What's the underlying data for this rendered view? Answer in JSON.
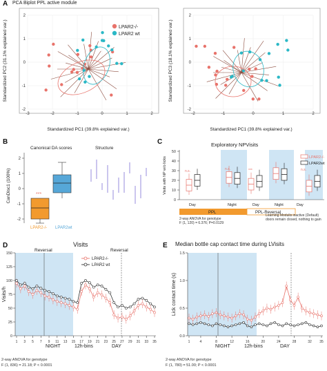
{
  "panels": {
    "A": "A",
    "B": "B",
    "C": "C",
    "D": "D",
    "E": "E"
  },
  "colors": {
    "ko": "#e8736b",
    "wt": "#2bb8c6",
    "shade": "#cfe5f4",
    "arrow": "#8b4a3c",
    "orange": "#f29a2e",
    "blue": "#56a7d8"
  },
  "panelA": {
    "title": "PCA Biplot PPL active module",
    "left": {
      "xlabel": "Standardized PC1 (39.8% explained var.)",
      "ylabel": "Standardized PC2 (31.1% explained var.)",
      "xticks": [
        "-3",
        "-2",
        "-1",
        "0",
        "1",
        "2"
      ],
      "yticks": [
        "2",
        "1",
        "0",
        "-1",
        "-2"
      ],
      "legend": [
        "LPAR2-/-",
        "LPAR2 wt"
      ]
    },
    "right": {
      "xlabel": "Standardized PC1 (39.8% explained var.)",
      "ylabel": "Standardized PC3 (18.1% explained var.)",
      "xticks": [
        "-2",
        "-1",
        "0",
        "1",
        "2"
      ],
      "yticks": [
        "2",
        "1",
        "0",
        "-1",
        "-2"
      ]
    }
  },
  "panelB": {
    "title_left": "Canonical DA scores",
    "title_right": "Structure",
    "ylabel": "CanDisc1 (100%)",
    "yticks": [
      "2",
      "1",
      "0",
      "-1",
      "-2"
    ],
    "groups": [
      "LPAR2-/-",
      "LPAR2wt"
    ],
    "sig": "***"
  },
  "panelC": {
    "title": "Exploratory NPVisits",
    "ylabel": "Visits with NP w/o licks",
    "yticks": [
      "50",
      "40",
      "30",
      "20",
      "10",
      "0"
    ],
    "legend": [
      "LPAR2-/-",
      "LPAR2wt"
    ],
    "phases": [
      "Day",
      "Night",
      "Day",
      "Night",
      "Day"
    ],
    "conditions": [
      "PPL",
      "PPL-Reversal"
    ],
    "sig_labels": [
      "n.s.",
      "n.s.",
      "***",
      "n.s."
    ],
    "note_left": [
      "2-way ANOVA for genotype",
      "F (1, 120) = 6.376; P=0.0129"
    ],
    "note_right": [
      "Learning Modulis inactive (Default)",
      "doors remain closed, nothing to gain"
    ],
    "chart_data": {
      "type": "box",
      "groups": [
        "PPL Day",
        "PPL Night",
        "PPL-Reversal Day",
        "PPL-Reversal Night",
        "Default Day"
      ],
      "series": [
        {
          "name": "LPAR2-/-",
          "median": [
            15,
            23,
            16,
            27,
            14
          ]
        },
        {
          "name": "LPAR2wt",
          "median": [
            20,
            22,
            19,
            26,
            19
          ]
        }
      ],
      "ylim": [
        0,
        50
      ]
    }
  },
  "panelD": {
    "title": "Visits",
    "ylabel": "Visits/h",
    "xlabel_parts": [
      "NIGHT",
      "12h-bins",
      "DAY"
    ],
    "reversal": "Reversal",
    "legend": [
      "LPAR2-/-",
      "LPAR2 wt"
    ],
    "yticks": [
      "150",
      "125",
      "100",
      "75",
      "50",
      "25",
      "0"
    ],
    "xticks": [
      "1",
      "3",
      "5",
      "7",
      "9",
      "11",
      "13",
      "15",
      "17",
      "19",
      "21",
      "23",
      "25",
      "27",
      "29",
      "31",
      "33",
      "35"
    ],
    "note": [
      "2-way ANOVA for genotype",
      "F (1, 836) = 21.18; P < 0.0001"
    ],
    "chart_data": {
      "type": "line",
      "x": [
        1,
        2,
        3,
        4,
        5,
        6,
        7,
        8,
        9,
        10,
        11,
        12,
        13,
        14,
        15,
        16,
        17,
        18,
        19,
        20,
        21,
        22,
        23,
        24,
        25,
        26,
        27,
        28,
        29,
        30,
        31,
        32,
        33,
        34,
        35
      ],
      "series": [
        {
          "name": "LPAR2-/-",
          "values": [
            95,
            85,
            90,
            80,
            75,
            82,
            78,
            72,
            70,
            65,
            62,
            60,
            58,
            55,
            52,
            48,
            80,
            92,
            85,
            70,
            78,
            74,
            68,
            60,
            38,
            32,
            34,
            30,
            36,
            45,
            55,
            58,
            52,
            48,
            42
          ]
        },
        {
          "name": "LPAR2 wt",
          "values": [
            100,
            92,
            95,
            88,
            85,
            90,
            86,
            82,
            80,
            76,
            72,
            70,
            68,
            66,
            62,
            60,
            95,
            100,
            96,
            88,
            92,
            90,
            84,
            78,
            60,
            52,
            55,
            50,
            52,
            58,
            66,
            68,
            64,
            58,
            52
          ]
        }
      ],
      "ylim": [
        0,
        150
      ]
    }
  },
  "panelE": {
    "title": "Median bottle cap contact time during LVisits",
    "ylabel": "Lick contact time (s)",
    "xlabel_parts": [
      "NIGHT",
      "12h-bins",
      "DAY"
    ],
    "yticks": [
      "1.5",
      "1.0",
      "0.5",
      "0.0"
    ],
    "xticks": [
      "1",
      "4",
      "8",
      "12",
      "16",
      "20",
      "24",
      "28",
      "32",
      "35"
    ],
    "note": [
      "2-way ANOVA for genotype",
      "F (1, 780) = 51.00; P < 0.0001"
    ],
    "chart_data": {
      "type": "line",
      "x": [
        1,
        2,
        3,
        4,
        5,
        6,
        7,
        8,
        9,
        10,
        11,
        12,
        13,
        14,
        15,
        16,
        17,
        18,
        19,
        20,
        21,
        22,
        23,
        24,
        25,
        26,
        27,
        28,
        29,
        30,
        31,
        32,
        33,
        34,
        35
      ],
      "series": [
        {
          "name": "LPAR2-/-",
          "values": [
            0.32,
            0.3,
            0.34,
            0.36,
            0.38,
            0.35,
            0.4,
            0.42,
            0.38,
            0.36,
            0.34,
            0.32,
            0.36,
            0.4,
            0.38,
            0.3,
            0.28,
            0.34,
            0.4,
            0.45,
            0.5,
            0.48,
            0.52,
            0.55,
            0.6,
            0.9,
            0.65,
            0.55,
            0.7,
            0.5,
            0.45,
            0.42,
            0.4,
            0.38,
            0.36
          ]
        },
        {
          "name": "LPAR2 wt",
          "values": [
            0.22,
            0.2,
            0.22,
            0.24,
            0.22,
            0.2,
            0.18,
            0.22,
            0.2,
            0.18,
            0.16,
            0.18,
            0.2,
            0.22,
            0.24,
            0.18,
            0.16,
            0.2,
            0.22,
            0.2,
            0.18,
            0.22,
            0.24,
            0.2,
            0.18,
            0.22,
            0.2,
            0.18,
            0.2,
            0.22,
            0.24,
            0.2,
            0.18,
            0.16,
            0.18
          ]
        }
      ],
      "ylim": [
        0,
        1.5
      ]
    }
  }
}
